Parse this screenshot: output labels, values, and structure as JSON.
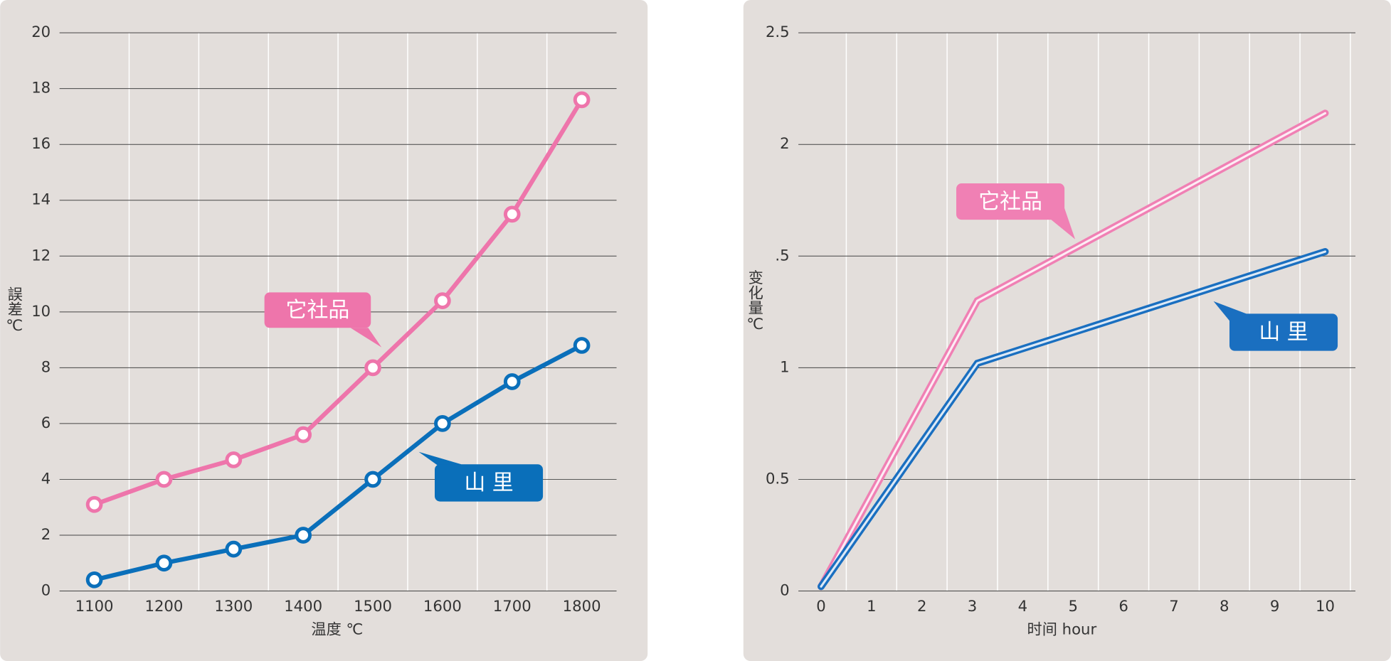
{
  "chart_data": [
    {
      "type": "line",
      "y_label": "誤差℃",
      "x_label": "温度 ℃",
      "categories": [
        "1100",
        "1200",
        "1300",
        "1400",
        "1500",
        "1600",
        "1700",
        "1800"
      ],
      "series": [
        {
          "name": "它社品",
          "color": "#ee75ab",
          "values": [
            3.1,
            4.0,
            4.7,
            5.6,
            8.0,
            10.4,
            13.5,
            17.6
          ]
        },
        {
          "name": "山 里",
          "color": "#0a6fba",
          "values": [
            0.4,
            1.0,
            1.5,
            2.0,
            4.0,
            6.0,
            7.5,
            8.8
          ]
        }
      ],
      "ylim": [
        0,
        20
      ],
      "yticks": [
        0,
        2,
        4,
        6,
        8,
        10,
        12,
        14,
        16,
        18,
        20
      ],
      "grid": true
    },
    {
      "type": "line",
      "y_label": "变化量℃",
      "x_label": "时间 hour",
      "series": [
        {
          "name": "它社品",
          "color": "#f080b4",
          "x": [
            0,
            3.1,
            10
          ],
          "values": [
            0.02,
            1.3,
            2.14
          ]
        },
        {
          "name": "山 里",
          "color": "#1a6fc0",
          "x": [
            0,
            3.1,
            10
          ],
          "values": [
            0.02,
            1.02,
            1.52
          ]
        }
      ],
      "xlim": [
        -0.45,
        10.6
      ],
      "xticks": [
        0,
        1,
        2,
        3,
        4,
        5,
        6,
        7,
        8,
        9,
        10
      ],
      "ylim": [
        0,
        2.5
      ],
      "yticks": [
        0,
        0.5,
        1,
        {
          "value": 1.5,
          "label": ".5"
        },
        2,
        2.5
      ],
      "grid": true
    }
  ]
}
